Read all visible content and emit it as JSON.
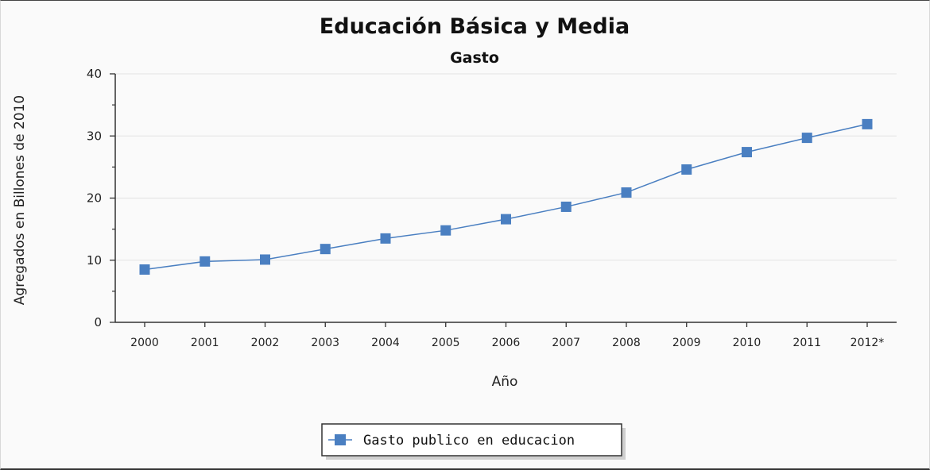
{
  "chart_data": {
    "type": "line",
    "title": "Educación Básica y Media",
    "subtitle": "Gasto",
    "xlabel": "Año",
    "ylabel": "Agregados en Billones de 2010",
    "categories": [
      "2000",
      "2001",
      "2002",
      "2003",
      "2004",
      "2005",
      "2006",
      "2007",
      "2008",
      "2009",
      "2010",
      "2011",
      "2012*"
    ],
    "series": [
      {
        "name": "Gasto publico en educacion",
        "values": [
          8.5,
          9.8,
          10.1,
          11.8,
          13.5,
          14.8,
          16.6,
          18.6,
          20.9,
          24.6,
          27.4,
          29.7,
          31.9
        ]
      }
    ],
    "ylim": [
      0,
      40
    ],
    "yticks": [
      0,
      10,
      20,
      30,
      40
    ],
    "grid": "horizontal",
    "legend_position": "bottom-center",
    "colors": {
      "series": "#4a7fc1",
      "marker": "#4a7fc1",
      "grid": "#e2e2e2",
      "axis": "#333333"
    }
  }
}
